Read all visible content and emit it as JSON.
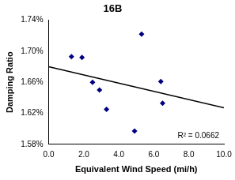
{
  "chart_data": {
    "type": "scatter",
    "title": "16B",
    "x_label": "Equivalent Wind Speed (mi/h)",
    "y_label": "Damping Ratio",
    "annotation": "R² = 0.0662",
    "series": [
      {
        "x": [
          1.3,
          1.9,
          2.5,
          2.9,
          3.3,
          4.9,
          5.3,
          6.4,
          6.5
        ],
        "values": [
          1.693,
          1.692,
          1.66,
          1.65,
          1.625,
          1.597,
          1.722,
          1.661,
          1.633
        ],
        "color": "#000080",
        "marker": "diamond"
      },
      {
        "type": "line",
        "x": [
          0,
          10
        ],
        "values": [
          1.68,
          1.627
        ],
        "color": "#000000",
        "line_style": "solid"
      }
    ],
    "xlim": [
      0,
      10
    ],
    "xticks": [
      {
        "value": 0,
        "label": "0.0"
      },
      {
        "value": 2,
        "label": "2.0"
      },
      {
        "value": 4,
        "label": "4.0"
      },
      {
        "value": 6,
        "label": "6.0"
      },
      {
        "value": 8,
        "label": "8.0"
      },
      {
        "value": 10,
        "label": "10.0"
      }
    ],
    "ylim": [
      1.58,
      1.74
    ],
    "yticks": [
      {
        "value": 1.58,
        "label": "1.58%"
      },
      {
        "value": 1.62,
        "label": "1.62%"
      },
      {
        "value": 1.66,
        "label": "1.66%"
      },
      {
        "value": 1.7,
        "label": "1.70%"
      },
      {
        "value": 1.74,
        "label": "1.74%"
      }
    ],
    "grid": false
  }
}
